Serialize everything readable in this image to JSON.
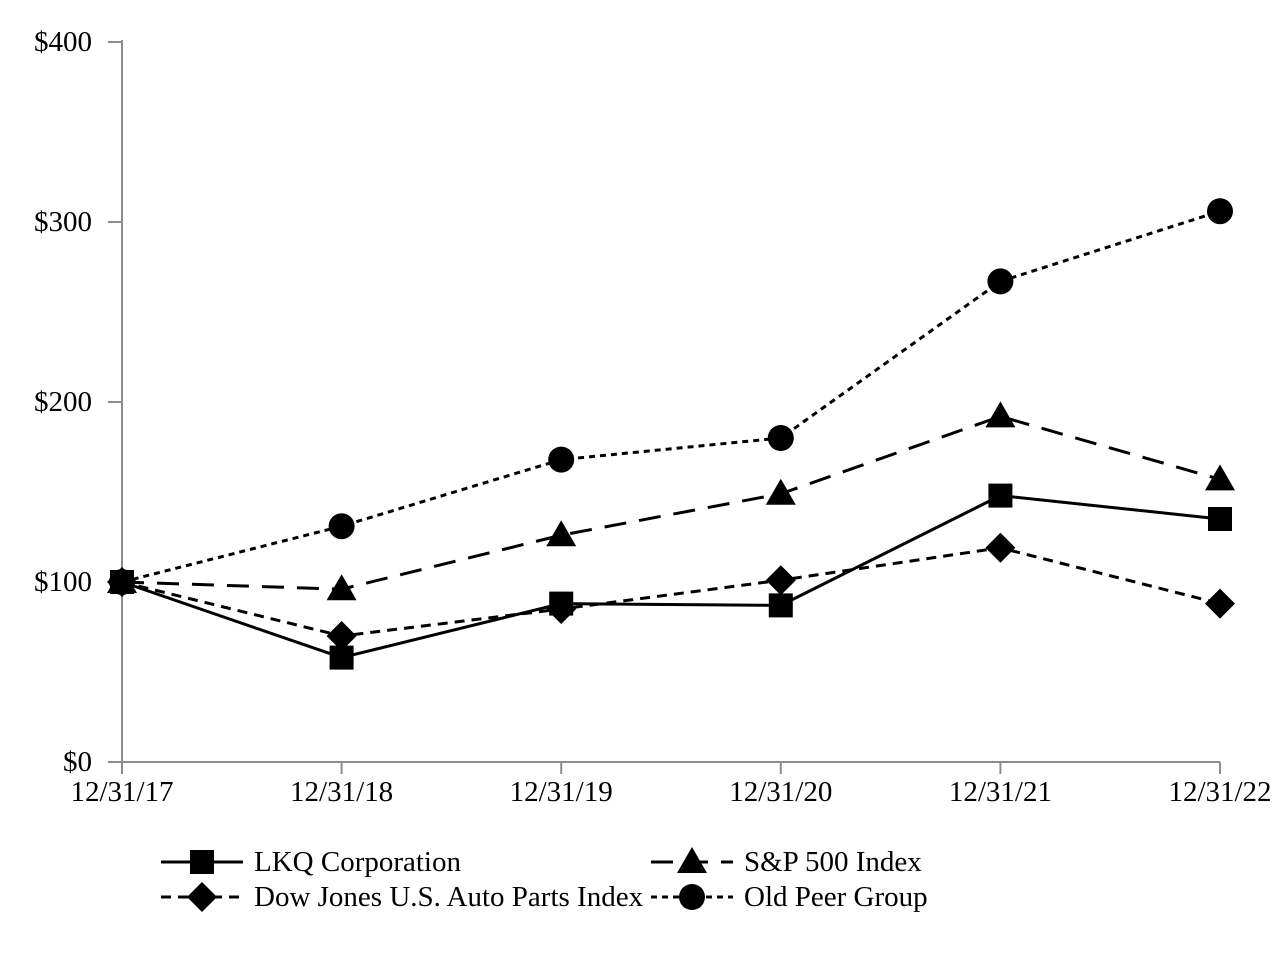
{
  "chart_data": {
    "type": "line",
    "title": "",
    "xlabel": "",
    "ylabel": "",
    "categories": [
      "12/31/17",
      "12/31/18",
      "12/31/19",
      "12/31/20",
      "12/31/21",
      "12/31/22"
    ],
    "ylim": [
      0,
      400
    ],
    "y_ticks": [
      0,
      100,
      200,
      300,
      400
    ],
    "y_tick_labels": [
      "$0",
      "$100",
      "$200",
      "$300",
      "$400"
    ],
    "grid": false,
    "legend_position": "bottom",
    "series": [
      {
        "name": "LKQ Corporation",
        "marker": "square",
        "line_style": "solid",
        "values": [
          100,
          58,
          88,
          87,
          148,
          135
        ]
      },
      {
        "name": "S&P 500 Index",
        "marker": "triangle",
        "line_style": "long-dash",
        "values": [
          100,
          96,
          126,
          149,
          192,
          157
        ]
      },
      {
        "name": "Dow Jones U.S. Auto Parts Index",
        "marker": "diamond",
        "line_style": "medium-dash",
        "values": [
          100,
          70,
          85,
          101,
          119,
          88
        ]
      },
      {
        "name": "Old Peer Group",
        "marker": "circle",
        "line_style": "fine-dash",
        "values": [
          100,
          131,
          168,
          180,
          267,
          306
        ]
      }
    ],
    "colors": {
      "series": "#000000",
      "axis": "#8c8c8c",
      "background": "#ffffff",
      "text": "#000000"
    }
  }
}
